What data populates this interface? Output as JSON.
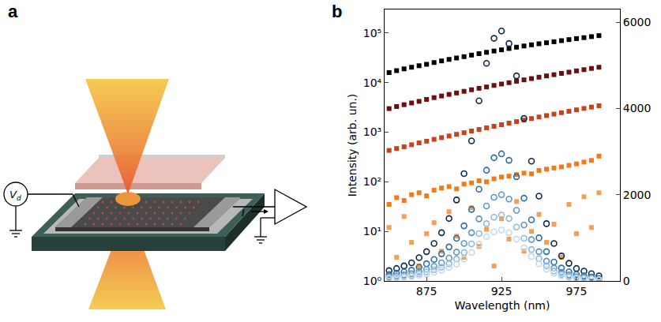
{
  "diagram": {
    "panel_label": "a",
    "voltage_label": {
      "text": "V",
      "subscript": "d"
    },
    "current_label": "I"
  },
  "chart_data": {
    "type": "scatter",
    "panel_label": "b",
    "x_label": "Wavelength (nm)",
    "y_label": "Intensity (arb. un.)",
    "log": "y",
    "grid": false,
    "x": [
      850,
      855,
      860,
      865,
      870,
      875,
      880,
      885,
      890,
      895,
      900,
      905,
      910,
      915,
      920,
      925,
      930,
      935,
      940,
      945,
      950,
      955,
      960,
      965,
      970,
      975,
      980,
      985,
      990
    ],
    "xlim": [
      847,
      1004
    ],
    "xticks": [
      875,
      925,
      975
    ],
    "ylim": [
      1,
      300000
    ],
    "yticks": [
      {
        "value": 1,
        "label": "10⁰"
      },
      {
        "value": 10,
        "label": "10¹"
      },
      {
        "value": 100,
        "label": "10²"
      },
      {
        "value": 1000,
        "label": "10³"
      },
      {
        "value": 10000,
        "label": "10⁴"
      },
      {
        "value": 100000,
        "label": "10⁵"
      }
    ],
    "y2lim": [
      0,
      6300
    ],
    "y2ticks": [
      0,
      2000,
      4000,
      6000
    ],
    "series": [
      {
        "color": "#000000",
        "marker": "square",
        "values": [
          16000,
          17500,
          19000,
          20500,
          22000,
          23500,
          25500,
          27500,
          29500,
          31500,
          33500,
          36000,
          38500,
          41000,
          43500,
          46000,
          49000,
          52000,
          55000,
          58000,
          61000,
          64000,
          67000,
          70500,
          74000,
          77500,
          81000,
          85000,
          89000
        ]
      },
      {
        "color": "#6b0f0f",
        "marker": "square",
        "values": [
          3000,
          3300,
          3600,
          3900,
          4200,
          4600,
          5000,
          5400,
          5800,
          6200,
          6700,
          7200,
          7700,
          8200,
          8800,
          9400,
          10000,
          10700,
          11400,
          12100,
          12900,
          13700,
          14500,
          15400,
          16300,
          17300,
          18300,
          19400,
          20500
        ]
      },
      {
        "color": "#c8431b",
        "marker": "square",
        "values": [
          430,
          470,
          510,
          560,
          610,
          660,
          720,
          780,
          840,
          910,
          980,
          1060,
          1140,
          1230,
          1320,
          1420,
          1530,
          1640,
          1760,
          1890,
          2030,
          2170,
          2320,
          2480,
          2650,
          2830,
          3020,
          3220,
          3430
        ]
      },
      {
        "color": "#f07b18",
        "marker": "square",
        "values": [
          35,
          48,
          42,
          55,
          60,
          52,
          68,
          75,
          80,
          72,
          90,
          95,
          105,
          100,
          115,
          125,
          130,
          140,
          150,
          145,
          170,
          180,
          190,
          200,
          215,
          230,
          250,
          270,
          330
        ]
      },
      {
        "color": "#f5a050",
        "marker": "square",
        "values": [
          12,
          3,
          20,
          6,
          2,
          9,
          15,
          4,
          25,
          8,
          3,
          30,
          5,
          11,
          2,
          18,
          7,
          40,
          4,
          10,
          22,
          6,
          14,
          3,
          35,
          9,
          50,
          12,
          60
        ]
      },
      {
        "color": "#0d2a4a",
        "marker": "circle-open",
        "axis": "y2",
        "values": [
          240,
          290,
          350,
          420,
          540,
          680,
          870,
          1120,
          1450,
          1880,
          2490,
          3250,
          4180,
          5050,
          5630,
          5800,
          5510,
          4760,
          3770,
          2780,
          1970,
          1330,
          870,
          580,
          410,
          290,
          230,
          170,
          120
        ]
      },
      {
        "color": "#2f6ea3",
        "marker": "circle-open",
        "axis": "y2",
        "values": [
          150,
          180,
          210,
          250,
          320,
          400,
          500,
          630,
          790,
          990,
          1280,
          1660,
          2130,
          2570,
          2860,
          2950,
          2800,
          2420,
          1920,
          1420,
          1000,
          680,
          440,
          300,
          210,
          150,
          120,
          90,
          60
        ]
      },
      {
        "color": "#5b97c6",
        "marker": "circle-open",
        "axis": "y2",
        "values": [
          100,
          120,
          140,
          170,
          220,
          270,
          340,
          420,
          530,
          670,
          870,
          1120,
          1440,
          1740,
          1940,
          2000,
          1900,
          1640,
          1300,
          960,
          680,
          460,
          300,
          200,
          140,
          100,
          80,
          60,
          40
        ]
      },
      {
        "color": "#8fb9dc",
        "marker": "circle-open",
        "axis": "y2",
        "values": [
          80,
          95,
          110,
          130,
          170,
          210,
          260,
          320,
          400,
          510,
          660,
          860,
          1100,
          1330,
          1480,
          1530,
          1450,
          1250,
          990,
          730,
          520,
          350,
          230,
          150,
          110,
          80,
          60,
          50,
          30
        ]
      },
      {
        "color": "#c3d9ec",
        "marker": "circle-open",
        "axis": "y2",
        "values": [
          60,
          70,
          85,
          100,
          130,
          160,
          200,
          250,
          310,
          390,
          510,
          660,
          850,
          1030,
          1140,
          1180,
          1120,
          970,
          770,
          570,
          400,
          270,
          180,
          120,
          80,
          60,
          50,
          40,
          25
        ]
      }
    ]
  }
}
